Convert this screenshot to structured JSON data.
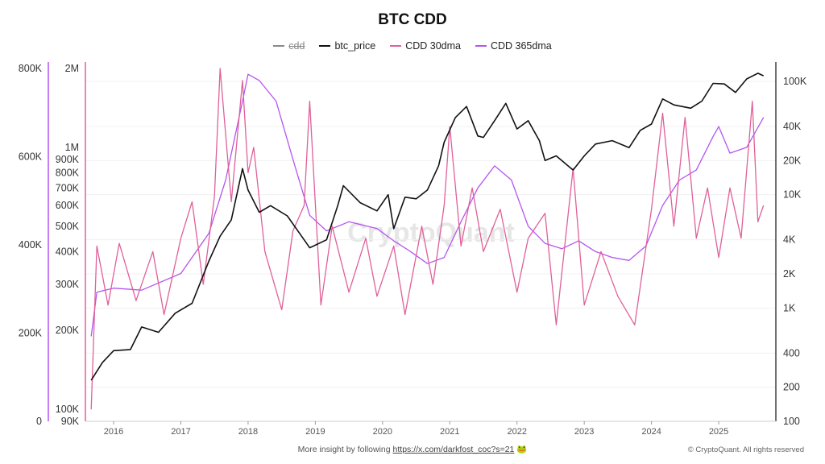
{
  "title": "BTC CDD",
  "legend": [
    {
      "label": "cdd",
      "color": "#8a8a8a",
      "hidden": true
    },
    {
      "label": "btc_price",
      "color": "#111111",
      "hidden": false
    },
    {
      "label": "CDD 30dma",
      "color": "#e0609a",
      "hidden": false
    },
    {
      "label": "CDD 365dma",
      "color": "#b455f0",
      "hidden": false
    }
  ],
  "watermark": "CryptoQuant",
  "footer": {
    "text": "More insight by following",
    "link": "https://x.com/darkfost_coc?s=21",
    "emoji": "🐸"
  },
  "copyright": "© CryptoQuant. All rights reserved",
  "colors": {
    "cdd_axis": "#b455f0",
    "dma_axis": "#e0609a",
    "price_axis": "#111111"
  },
  "chart_data": {
    "type": "line",
    "title": "BTC CDD",
    "x_ticks": [
      "2016",
      "2017",
      "2018",
      "2019",
      "2020",
      "2021",
      "2022",
      "2023",
      "2024",
      "2025"
    ],
    "axes": {
      "cdd_linear": {
        "ticks": [
          "0",
          "200K",
          "400K",
          "600K",
          "800K"
        ],
        "range": [
          0,
          800000
        ],
        "scale": "linear"
      },
      "cdd_log": {
        "ticks": [
          "90K",
          "100K",
          "200K",
          "300K",
          "400K",
          "500K",
          "600K",
          "700K",
          "800K",
          "900K",
          "1M",
          "2M"
        ],
        "range": [
          90000,
          2000000
        ],
        "scale": "log"
      },
      "price_log": {
        "ticks": [
          "100",
          "200",
          "400",
          "1K",
          "2K",
          "4K",
          "10K",
          "20K",
          "40K",
          "100K"
        ],
        "range": [
          100,
          130000
        ],
        "scale": "log"
      }
    },
    "grid": true,
    "legend_position": "top-center",
    "series": [
      {
        "name": "btc_price",
        "axis": "price_log",
        "points": [
          [
            "2015-09",
            230
          ],
          [
            "2015-11",
            330
          ],
          [
            "2016-01",
            420
          ],
          [
            "2016-04",
            430
          ],
          [
            "2016-06",
            680
          ],
          [
            "2016-09",
            610
          ],
          [
            "2016-12",
            900
          ],
          [
            "2017-03",
            1100
          ],
          [
            "2017-06",
            2600
          ],
          [
            "2017-08",
            4300
          ],
          [
            "2017-10",
            6000
          ],
          [
            "2017-12",
            17000
          ],
          [
            "2018-01",
            11000
          ],
          [
            "2018-03",
            7000
          ],
          [
            "2018-05",
            8000
          ],
          [
            "2018-08",
            6500
          ],
          [
            "2018-11",
            4000
          ],
          [
            "2018-12",
            3400
          ],
          [
            "2019-03",
            4000
          ],
          [
            "2019-05",
            8000
          ],
          [
            "2019-06",
            12000
          ],
          [
            "2019-09",
            8500
          ],
          [
            "2019-12",
            7200
          ],
          [
            "2020-02",
            10000
          ],
          [
            "2020-03",
            5000
          ],
          [
            "2020-05",
            9500
          ],
          [
            "2020-07",
            9200
          ],
          [
            "2020-09",
            11000
          ],
          [
            "2020-11",
            18000
          ],
          [
            "2020-12",
            29000
          ],
          [
            "2021-02",
            48000
          ],
          [
            "2021-04",
            60000
          ],
          [
            "2021-06",
            33000
          ],
          [
            "2021-07",
            32000
          ],
          [
            "2021-09",
            45000
          ],
          [
            "2021-11",
            64000
          ],
          [
            "2022-01",
            38000
          ],
          [
            "2022-03",
            45000
          ],
          [
            "2022-05",
            30000
          ],
          [
            "2022-06",
            20000
          ],
          [
            "2022-08",
            22000
          ],
          [
            "2022-11",
            16500
          ],
          [
            "2023-01",
            22000
          ],
          [
            "2023-03",
            28000
          ],
          [
            "2023-06",
            30000
          ],
          [
            "2023-09",
            26000
          ],
          [
            "2023-11",
            37000
          ],
          [
            "2024-01",
            42000
          ],
          [
            "2024-03",
            70000
          ],
          [
            "2024-05",
            62000
          ],
          [
            "2024-08",
            58000
          ],
          [
            "2024-10",
            67000
          ],
          [
            "2024-12",
            96000
          ],
          [
            "2025-02",
            95000
          ],
          [
            "2025-04",
            80000
          ],
          [
            "2025-06",
            105000
          ],
          [
            "2025-08",
            118000
          ],
          [
            "2025-09",
            112000
          ]
        ]
      },
      {
        "name": "CDD 365dma",
        "axis": "cdd_log",
        "points": [
          [
            "2015-09",
            190000
          ],
          [
            "2015-10",
            280000
          ],
          [
            "2016-01",
            290000
          ],
          [
            "2016-06",
            285000
          ],
          [
            "2017-01",
            330000
          ],
          [
            "2017-06",
            470000
          ],
          [
            "2017-09",
            750000
          ],
          [
            "2017-12",
            1500000
          ],
          [
            "2018-01",
            1900000
          ],
          [
            "2018-03",
            1800000
          ],
          [
            "2018-06",
            1500000
          ],
          [
            "2018-09",
            900000
          ],
          [
            "2018-12",
            550000
          ],
          [
            "2019-03",
            480000
          ],
          [
            "2019-07",
            520000
          ],
          [
            "2019-12",
            490000
          ],
          [
            "2020-03",
            440000
          ],
          [
            "2020-06",
            400000
          ],
          [
            "2020-09",
            360000
          ],
          [
            "2020-12",
            380000
          ],
          [
            "2021-03",
            520000
          ],
          [
            "2021-06",
            700000
          ],
          [
            "2021-09",
            850000
          ],
          [
            "2021-12",
            750000
          ],
          [
            "2022-03",
            500000
          ],
          [
            "2022-06",
            430000
          ],
          [
            "2022-09",
            410000
          ],
          [
            "2022-12",
            440000
          ],
          [
            "2023-03",
            400000
          ],
          [
            "2023-06",
            380000
          ],
          [
            "2023-09",
            370000
          ],
          [
            "2023-12",
            420000
          ],
          [
            "2024-03",
            600000
          ],
          [
            "2024-06",
            750000
          ],
          [
            "2024-09",
            820000
          ],
          [
            "2024-12",
            1100000
          ],
          [
            "2025-01",
            1200000
          ],
          [
            "2025-03",
            950000
          ],
          [
            "2025-06",
            1000000
          ],
          [
            "2025-09",
            1300000
          ]
        ]
      },
      {
        "name": "CDD 30dma",
        "axis": "cdd_log",
        "points": [
          [
            "2015-09",
            100000
          ],
          [
            "2015-10",
            420000
          ],
          [
            "2015-12",
            250000
          ],
          [
            "2016-02",
            430000
          ],
          [
            "2016-05",
            260000
          ],
          [
            "2016-08",
            400000
          ],
          [
            "2016-10",
            230000
          ],
          [
            "2017-01",
            450000
          ],
          [
            "2017-03",
            620000
          ],
          [
            "2017-05",
            300000
          ],
          [
            "2017-07",
            650000
          ],
          [
            "2017-08",
            2000000
          ],
          [
            "2017-10",
            620000
          ],
          [
            "2017-12",
            1800000
          ],
          [
            "2018-01",
            800000
          ],
          [
            "2018-02",
            1000000
          ],
          [
            "2018-04",
            400000
          ],
          [
            "2018-07",
            240000
          ],
          [
            "2018-09",
            480000
          ],
          [
            "2018-11",
            600000
          ],
          [
            "2018-12",
            1500000
          ],
          [
            "2019-02",
            250000
          ],
          [
            "2019-04",
            500000
          ],
          [
            "2019-07",
            280000
          ],
          [
            "2019-10",
            450000
          ],
          [
            "2019-12",
            270000
          ],
          [
            "2020-03",
            420000
          ],
          [
            "2020-05",
            230000
          ],
          [
            "2020-08",
            500000
          ],
          [
            "2020-10",
            300000
          ],
          [
            "2020-12",
            600000
          ],
          [
            "2021-01",
            1200000
          ],
          [
            "2021-03",
            420000
          ],
          [
            "2021-05",
            700000
          ],
          [
            "2021-07",
            400000
          ],
          [
            "2021-10",
            580000
          ],
          [
            "2022-01",
            280000
          ],
          [
            "2022-03",
            450000
          ],
          [
            "2022-06",
            560000
          ],
          [
            "2022-08",
            210000
          ],
          [
            "2022-11",
            830000
          ],
          [
            "2023-01",
            250000
          ],
          [
            "2023-04",
            400000
          ],
          [
            "2023-07",
            270000
          ],
          [
            "2023-10",
            210000
          ],
          [
            "2024-01",
            580000
          ],
          [
            "2024-03",
            1350000
          ],
          [
            "2024-05",
            500000
          ],
          [
            "2024-07",
            1300000
          ],
          [
            "2024-09",
            450000
          ],
          [
            "2024-11",
            700000
          ],
          [
            "2025-01",
            380000
          ],
          [
            "2025-03",
            700000
          ],
          [
            "2025-05",
            450000
          ],
          [
            "2025-07",
            1500000
          ],
          [
            "2025-08",
            520000
          ],
          [
            "2025-09",
            600000
          ]
        ]
      }
    ]
  }
}
